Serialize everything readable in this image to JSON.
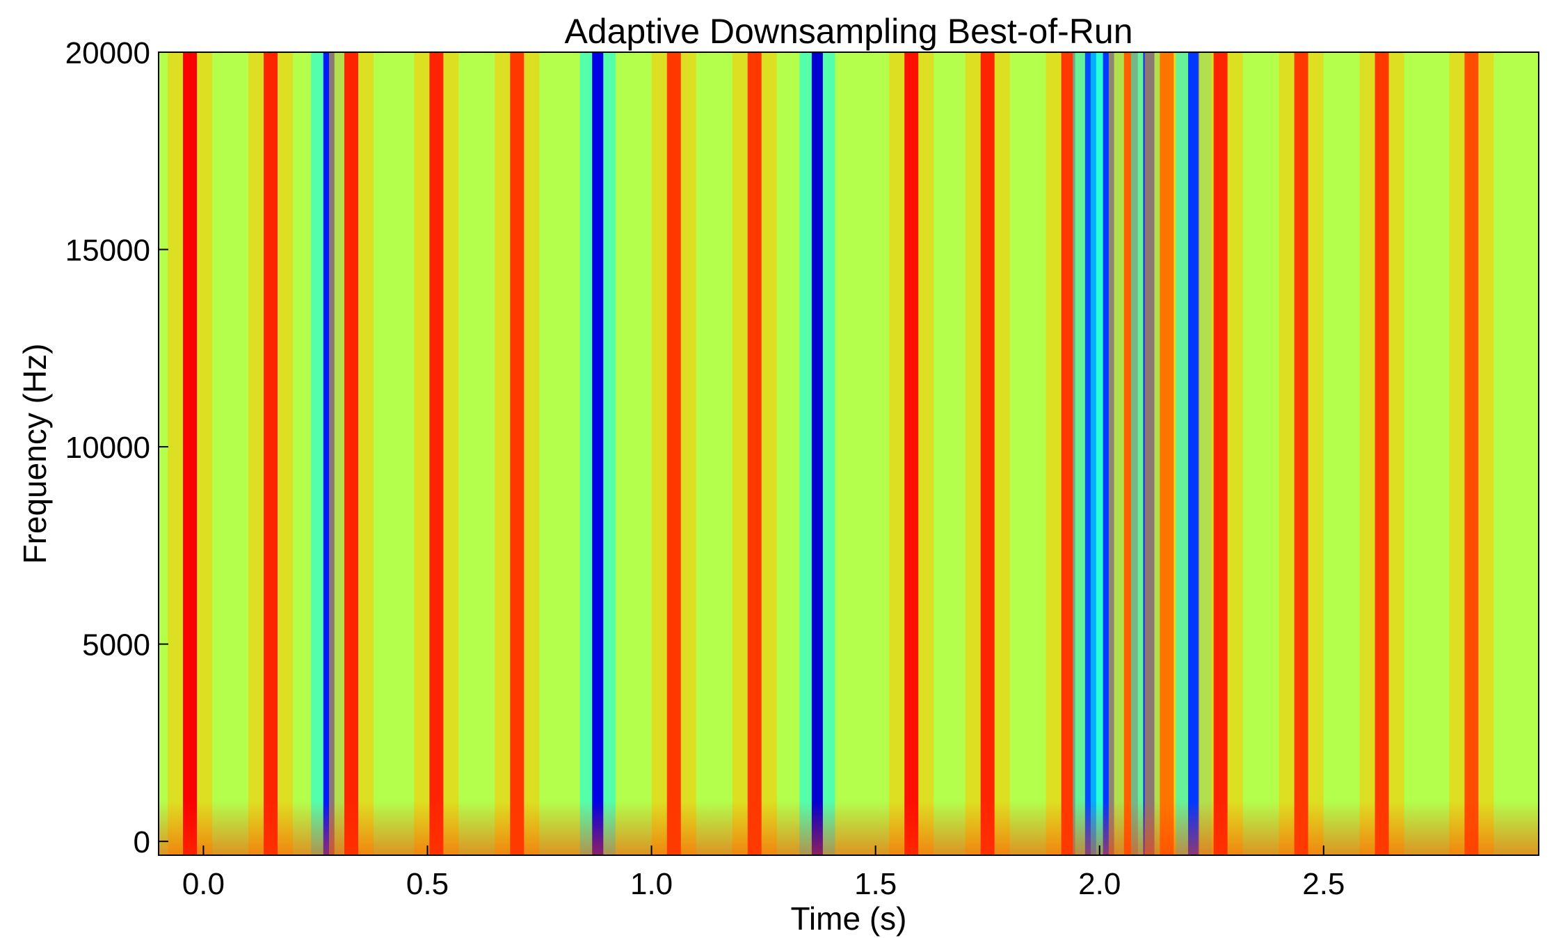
{
  "chart_data": {
    "type": "heatmap",
    "title": "Adaptive Downsampling Best-of-Run",
    "xlabel": "Time (s)",
    "ylabel": "Frequency (Hz)",
    "xlim": [
      -0.1,
      2.98
    ],
    "ylim": [
      -350,
      20000
    ],
    "x_ticks": [
      {
        "value": 0.0,
        "label": "0.0"
      },
      {
        "value": 0.5,
        "label": "0.5"
      },
      {
        "value": 1.0,
        "label": "1.0"
      },
      {
        "value": 1.5,
        "label": "1.5"
      },
      {
        "value": 2.0,
        "label": "2.0"
      },
      {
        "value": 2.5,
        "label": "2.5"
      }
    ],
    "y_ticks": [
      {
        "value": 0,
        "label": "0"
      },
      {
        "value": 5000,
        "label": "5000"
      },
      {
        "value": 10000,
        "label": "10000"
      },
      {
        "value": 15000,
        "label": "15000"
      },
      {
        "value": 20000,
        "label": "20000"
      }
    ],
    "colormap": "jet",
    "background_level": 0.55,
    "bands": [
      {
        "time": -0.03,
        "level": 0.88
      },
      {
        "time": 0.15,
        "level": 0.84
      },
      {
        "time": 0.28,
        "level": 0.15
      },
      {
        "time": 0.33,
        "level": 0.84
      },
      {
        "time": 0.52,
        "level": 0.84
      },
      {
        "time": 0.7,
        "level": 0.82
      },
      {
        "time": 0.88,
        "level": 0.1
      },
      {
        "time": 1.05,
        "level": 0.82
      },
      {
        "time": 1.23,
        "level": 0.82
      },
      {
        "time": 1.37,
        "level": 0.08
      },
      {
        "time": 1.58,
        "level": 0.86
      },
      {
        "time": 1.75,
        "level": 0.84
      },
      {
        "time": 1.93,
        "level": 0.82
      },
      {
        "time": 1.98,
        "level": 0.2
      },
      {
        "time": 2.02,
        "level": 0.18
      },
      {
        "time": 2.07,
        "level": 0.78
      },
      {
        "time": 2.11,
        "level": 0.15
      },
      {
        "time": 2.15,
        "level": 0.76
      },
      {
        "time": 2.21,
        "level": 0.18
      },
      {
        "time": 2.27,
        "level": 0.84
      },
      {
        "time": 2.45,
        "level": 0.82
      },
      {
        "time": 2.63,
        "level": 0.82
      },
      {
        "time": 2.83,
        "level": 0.8
      }
    ]
  }
}
